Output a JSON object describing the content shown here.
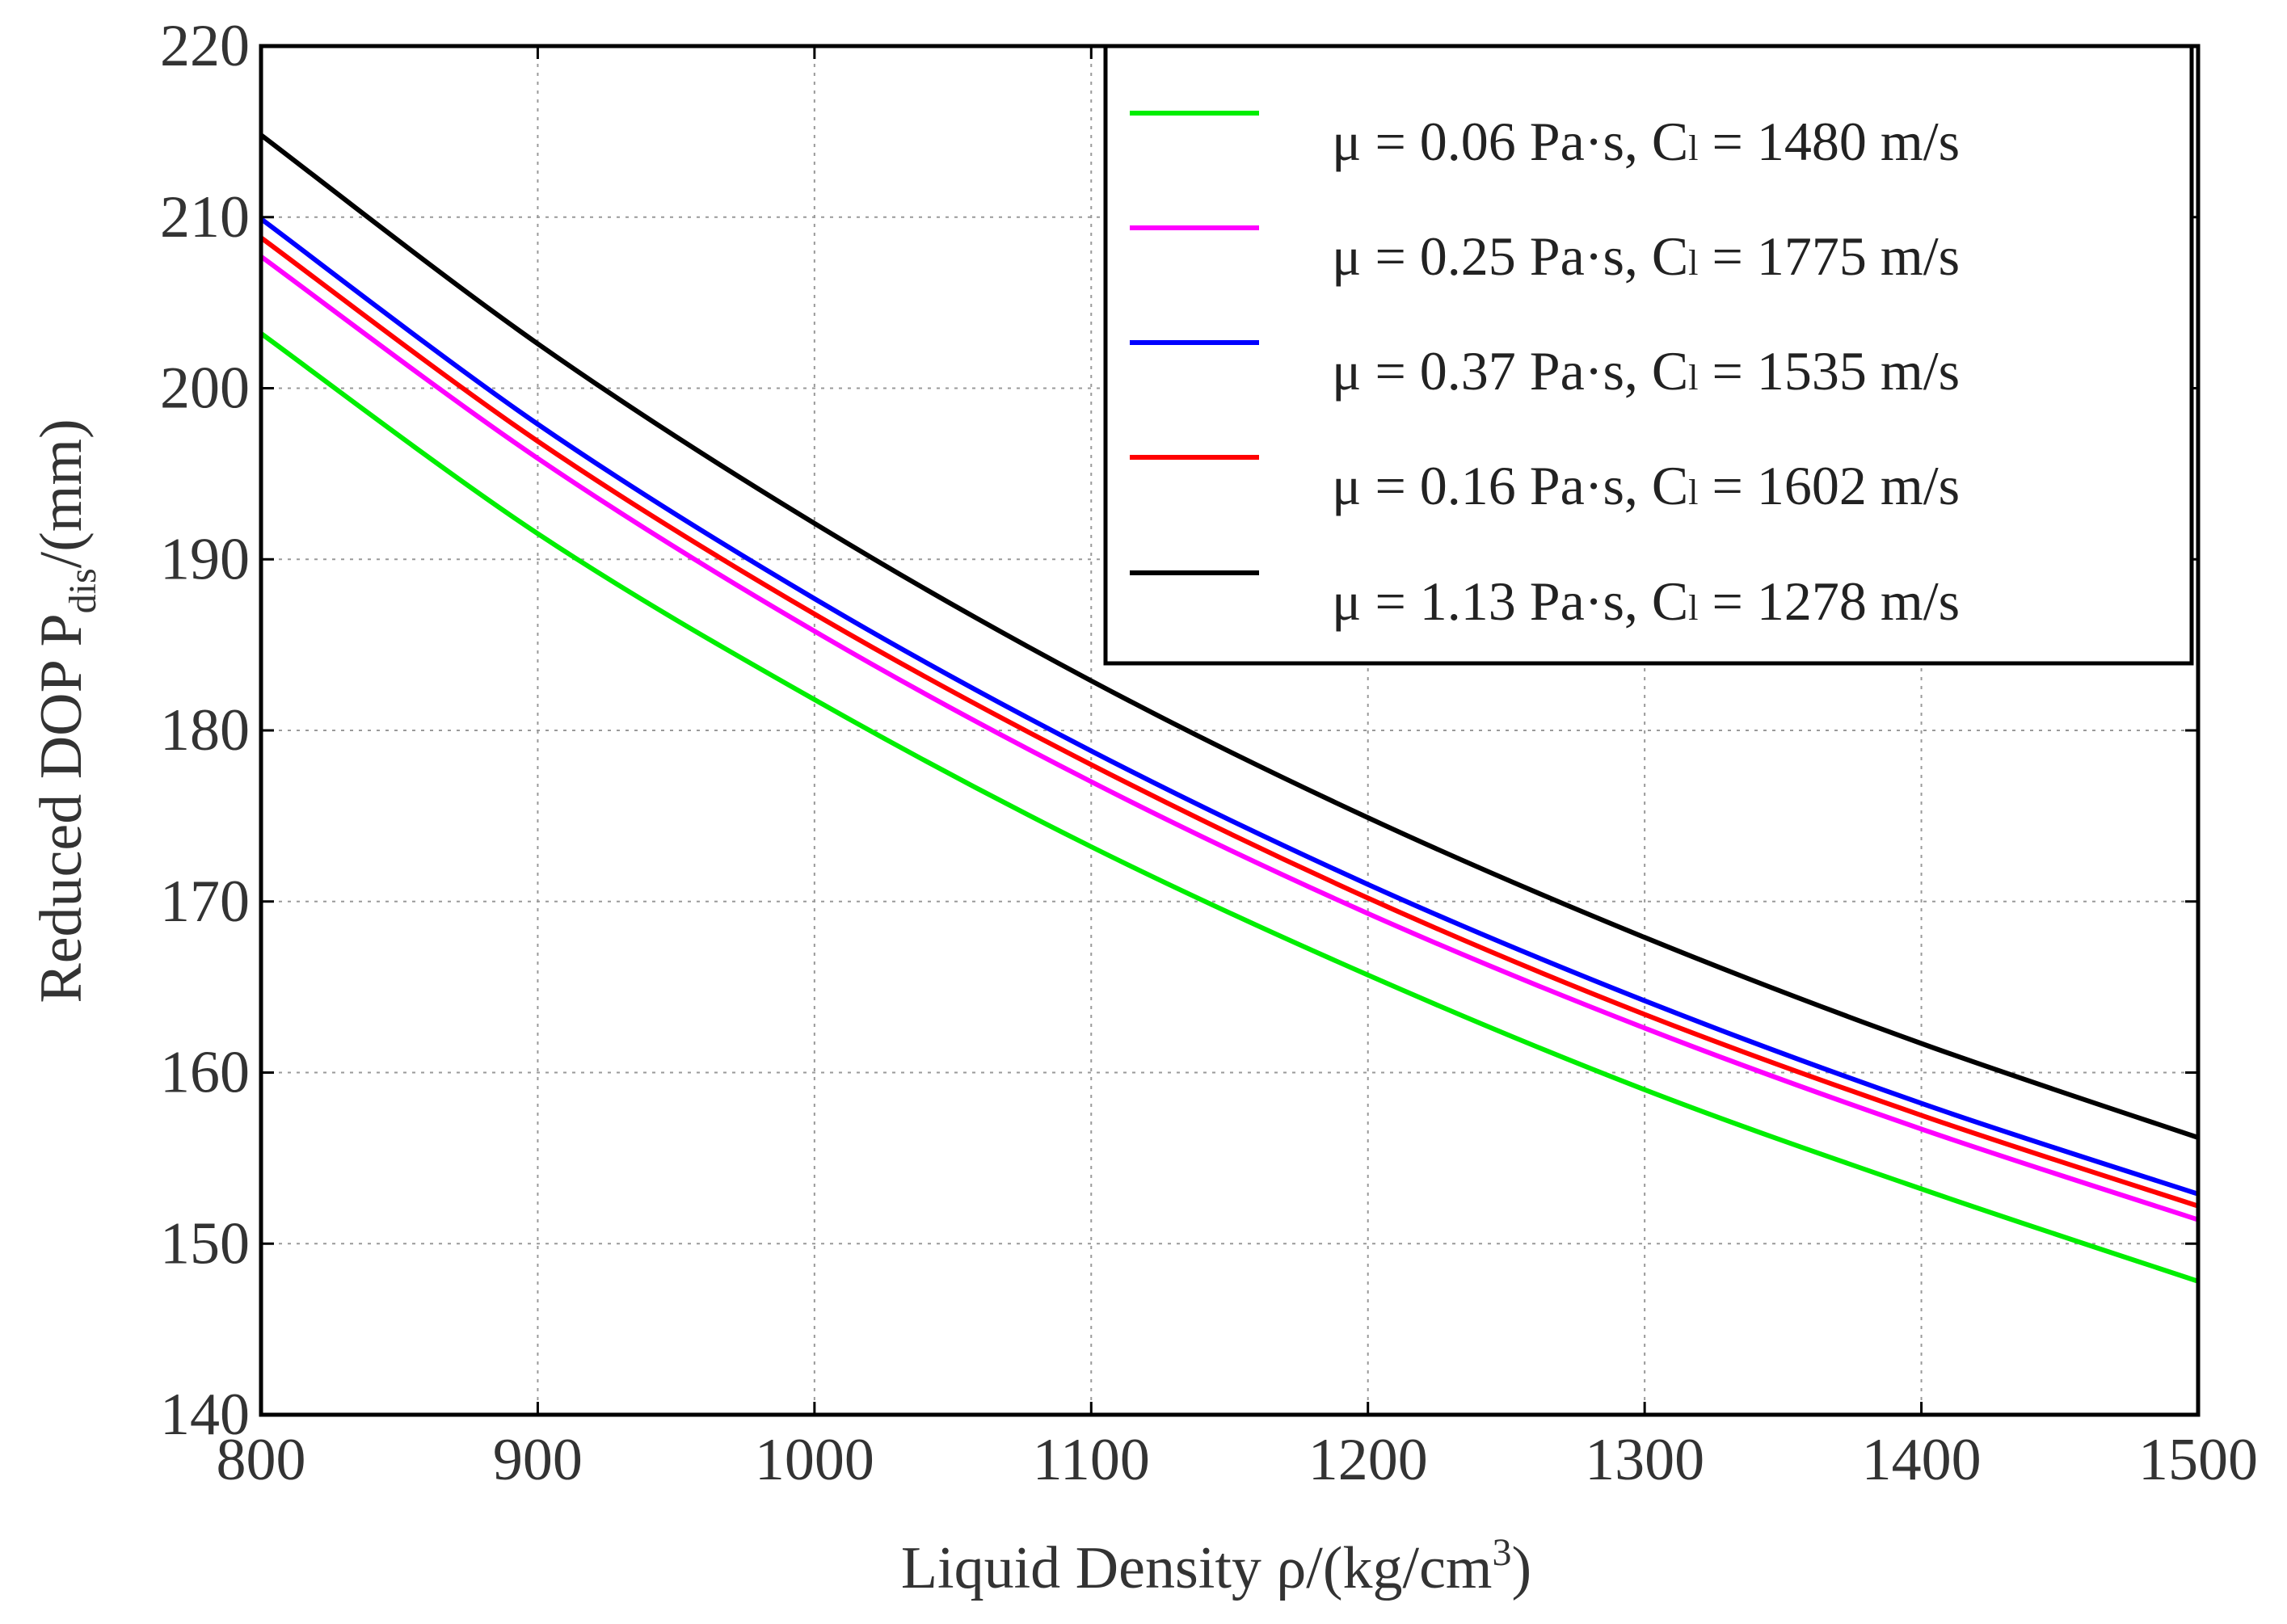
{
  "chart_data": {
    "type": "line",
    "title": "",
    "xlabel": "Liquid  Density ρ/(kg/cm",
    "xlabel_sup": "3",
    "xlabel_end": ")",
    "ylabel": "Reduced DOP P",
    "ylabel_sub": "dis",
    "ylabel_end": "/(mm)",
    "xlim": [
      800,
      1500
    ],
    "ylim": [
      140,
      220
    ],
    "xticks": [
      800,
      900,
      1000,
      1100,
      1200,
      1300,
      1400,
      1500
    ],
    "yticks": [
      140,
      150,
      160,
      170,
      180,
      190,
      200,
      210,
      220
    ],
    "grid": true,
    "legend_position": "top-right",
    "x": [
      800,
      900,
      1000,
      1100,
      1200,
      1300,
      1400,
      1500
    ],
    "series": [
      {
        "name": "μ = 0.06 Pa·s, Cl = 1480 m/s",
        "label_pre": "μ = 0.06 Pa·s, C",
        "label_sub": "l",
        "label_post": " = 1480 m/s",
        "color": "#00ee00",
        "values": [
          203.2,
          191.5,
          181.8,
          173.2,
          165.7,
          159.0,
          153.2,
          147.8
        ]
      },
      {
        "name": "μ = 0.25 Pa·s, Cl = 1775 m/s",
        "label_pre": "μ = 0.25 Pa·s, C",
        "label_sub": "l",
        "label_post": " = 1775 m/s",
        "color": "#ff00ff",
        "values": [
          207.7,
          195.9,
          185.8,
          177.0,
          169.3,
          162.6,
          156.7,
          151.4
        ]
      },
      {
        "name": "μ = 0.37 Pa·s, Cl = 1535 m/s",
        "label_pre": "μ = 0.37 Pa·s, C",
        "label_sub": "l",
        "label_post": " = 1535 m/s",
        "color": "#0000ff",
        "values": [
          209.9,
          197.9,
          187.7,
          178.8,
          171.0,
          164.2,
          158.2,
          152.9
        ]
      },
      {
        "name": "μ = 0.16 Pa·s, Cl = 1602 m/s",
        "label_pre": "μ = 0.16 Pa·s, C",
        "label_sub": "l",
        "label_post": " = 1602 m/s",
        "color": "#ff0000",
        "values": [
          208.8,
          196.9,
          186.8,
          178.0,
          170.2,
          163.4,
          157.5,
          152.2
        ]
      },
      {
        "name": "μ = 1.13 Pa·s, Cl = 1278 m/s",
        "label_pre": "μ = 1.13 Pa·s, C",
        "label_sub": "l",
        "label_post": " = 1278 m/s",
        "color": "#000000",
        "values": [
          214.8,
          202.6,
          192.1,
          182.9,
          174.9,
          167.9,
          161.7,
          156.2
        ]
      }
    ]
  }
}
